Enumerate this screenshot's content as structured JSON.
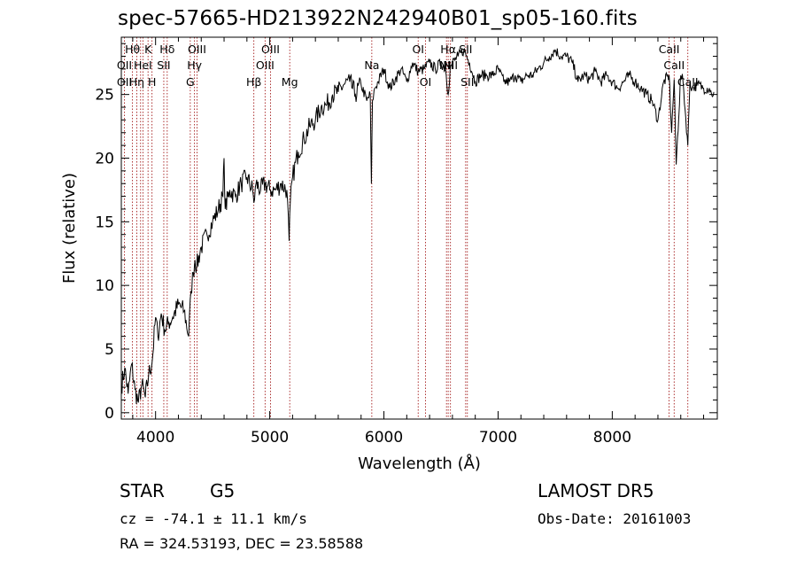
{
  "title": "spec-57665-HD213922N242940B01_sp05-160.fits",
  "info": {
    "class_left": "STAR",
    "subclass": "G5",
    "release": "LAMOST DR5",
    "cz": "cz = -74.1 ± 11.1 km/s",
    "obs_date": "Obs-Date: 20161003",
    "radec": "RA = 324.53193, DEC =  23.58588"
  },
  "colors": {
    "spectrum": "#000000",
    "lines": "#990000"
  },
  "chart_data": {
    "type": "line",
    "title": "spec-57665-HD213922N242940B01_sp05-160.fits",
    "xlabel": "Wavelength (Å)",
    "ylabel": "Flux (relative)",
    "xlim": [
      3700,
      8920
    ],
    "ylim": [
      -0.5,
      29.5
    ],
    "xticks": [
      4000,
      5000,
      6000,
      7000,
      8000
    ],
    "yticks": [
      0,
      5,
      10,
      15,
      20,
      25
    ],
    "series": [
      {
        "x": [
          3700,
          3730,
          3760,
          3790,
          3820,
          3850,
          3880,
          3910,
          3940,
          3970,
          4000,
          4020,
          4050,
          4080,
          4110,
          4150,
          4200,
          4250,
          4290,
          4310,
          4330,
          4345,
          4360,
          4400,
          4450,
          4500,
          4550,
          4590,
          4600,
          4610,
          4650,
          4700,
          4750,
          4800,
          4850,
          4861,
          4880,
          4920,
          4960,
          5000,
          5050,
          5100,
          5150,
          5170,
          5180,
          5200,
          5250,
          5300,
          5350,
          5400,
          5450,
          5500,
          5550,
          5600,
          5650,
          5700,
          5750,
          5800,
          5850,
          5880,
          5890,
          5900,
          5920,
          5950,
          6000,
          6050,
          6100,
          6150,
          6200,
          6250,
          6300,
          6350,
          6400,
          6450,
          6500,
          6540,
          6563,
          6580,
          6600,
          6650,
          6700,
          6750,
          6800,
          6850,
          6900,
          6950,
          7000,
          7050,
          7100,
          7150,
          7200,
          7250,
          7300,
          7350,
          7400,
          7450,
          7500,
          7550,
          7600,
          7650,
          7700,
          7750,
          7800,
          7850,
          7900,
          7950,
          8000,
          8050,
          8100,
          8150,
          8200,
          8250,
          8300,
          8350,
          8400,
          8450,
          8498,
          8520,
          8542,
          8560,
          8600,
          8620,
          8662,
          8680,
          8700,
          8750,
          8800,
          8850,
          8870,
          8890
        ],
        "y": [
          2.0,
          3.5,
          1.5,
          3.8,
          1.8,
          0.8,
          2.2,
          1.2,
          3.0,
          4.0,
          7.5,
          6.0,
          7.8,
          6.5,
          7.0,
          7.5,
          8.5,
          8.0,
          6.0,
          9.5,
          11.0,
          12.0,
          11.5,
          13.0,
          14.0,
          15.0,
          16.0,
          17.0,
          20.0,
          16.0,
          17.5,
          17.0,
          18.0,
          18.5,
          17.5,
          16.5,
          18.0,
          17.5,
          18.0,
          17.5,
          17.5,
          18.0,
          17.5,
          13.5,
          16.5,
          18.5,
          20.5,
          21.5,
          22.5,
          23.0,
          24.0,
          24.2,
          25.0,
          25.2,
          25.8,
          26.0,
          25.0,
          25.8,
          24.5,
          25.0,
          18.0,
          24.5,
          25.5,
          26.0,
          27.0,
          25.5,
          26.2,
          27.0,
          26.0,
          27.5,
          26.8,
          27.0,
          27.5,
          27.0,
          27.5,
          27.0,
          25.0,
          27.0,
          27.5,
          28.0,
          28.5,
          27.5,
          26.0,
          26.5,
          26.5,
          26.5,
          27.0,
          26.0,
          26.0,
          26.5,
          26.0,
          26.5,
          26.5,
          27.0,
          27.5,
          28.0,
          28.5,
          28.0,
          28.0,
          27.5,
          26.0,
          26.5,
          26.2,
          26.8,
          26.0,
          26.5,
          26.0,
          25.5,
          26.0,
          26.5,
          26.0,
          25.5,
          25.0,
          24.5,
          23.0,
          26.0,
          26.5,
          22.0,
          26.2,
          19.5,
          26.5,
          26.0,
          21.0,
          26.0,
          25.5,
          25.8,
          25.5,
          25.5,
          25.0,
          25.2
        ]
      }
    ],
    "line_markers": [
      {
        "x": 3727,
        "labels": [
          "OII"
        ]
      },
      {
        "x": 3798,
        "labels": [
          "Hθ"
        ]
      },
      {
        "x": 3835,
        "labels": [
          "Hη"
        ]
      },
      {
        "x": 3869,
        "labels": [
          "NeIII"
        ]
      },
      {
        "x": 3889,
        "labels": [
          "HeI"
        ]
      },
      {
        "x": 3934,
        "labels": [
          "K"
        ]
      },
      {
        "x": 3969,
        "labels": [
          "H"
        ]
      },
      {
        "x": 4072,
        "labels": [
          "SII"
        ]
      },
      {
        "x": 4102,
        "labels": [
          "Hδ"
        ]
      },
      {
        "x": 4304,
        "labels": [
          "G"
        ]
      },
      {
        "x": 4341,
        "labels": [
          "Hγ"
        ]
      },
      {
        "x": 4363,
        "labels": [
          "OIII"
        ]
      },
      {
        "x": 4861,
        "labels": [
          "Hβ"
        ]
      },
      {
        "x": 4959,
        "labels": [
          "OIII"
        ]
      },
      {
        "x": 5007,
        "labels": [
          "OIII"
        ]
      },
      {
        "x": 5175,
        "labels": [
          "Mg"
        ]
      },
      {
        "x": 5894,
        "labels": [
          "Na"
        ]
      },
      {
        "x": 6300,
        "labels": [
          "OI"
        ]
      },
      {
        "x": 6364,
        "labels": [
          "OI"
        ]
      },
      {
        "x": 6548,
        "labels": [
          "NII"
        ]
      },
      {
        "x": 6563,
        "labels": [
          "Hα"
        ]
      },
      {
        "x": 6583,
        "labels": [
          "NII"
        ]
      },
      {
        "x": 6716,
        "labels": [
          "SII"
        ]
      },
      {
        "x": 6731,
        "labels": [
          "SII"
        ]
      },
      {
        "x": 8498,
        "labels": [
          "CaII"
        ]
      },
      {
        "x": 8542,
        "labels": [
          "CaII"
        ]
      },
      {
        "x": 8662,
        "labels": [
          "CaII"
        ]
      }
    ]
  }
}
